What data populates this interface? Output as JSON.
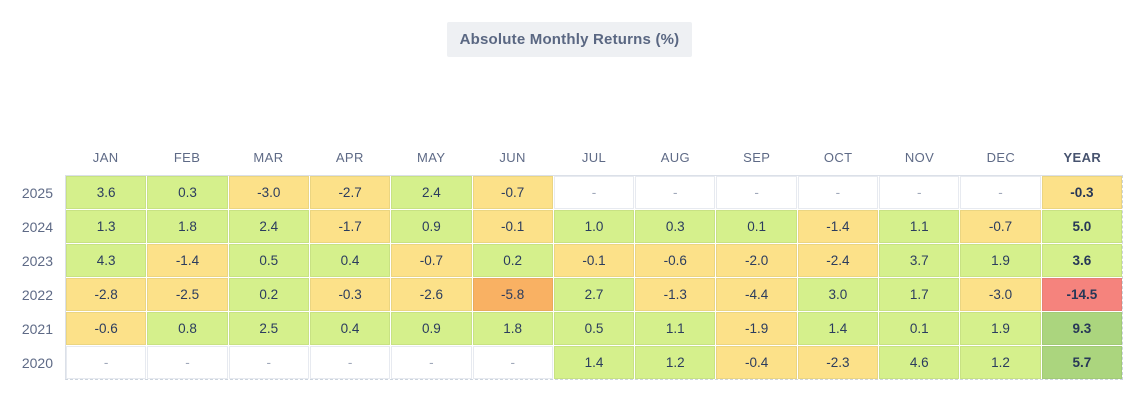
{
  "title": "Absolute Monthly Returns (%)",
  "chart_data": {
    "type": "heatmap",
    "title": "Absolute Monthly Returns (%)",
    "columns": [
      "JAN",
      "FEB",
      "MAR",
      "APR",
      "MAY",
      "JUN",
      "JUL",
      "AUG",
      "SEP",
      "OCT",
      "NOV",
      "DEC",
      "YEAR"
    ],
    "rows": [
      {
        "year": "2025",
        "values": [
          3.6,
          0.3,
          -3.0,
          -2.7,
          2.4,
          -0.7,
          null,
          null,
          null,
          null,
          null,
          null
        ],
        "year_total": -0.3
      },
      {
        "year": "2024",
        "values": [
          1.3,
          1.8,
          2.4,
          -1.7,
          0.9,
          -0.1,
          1.0,
          0.3,
          0.1,
          -1.4,
          1.1,
          -0.7
        ],
        "year_total": 5.0
      },
      {
        "year": "2023",
        "values": [
          4.3,
          -1.4,
          0.5,
          0.4,
          -0.7,
          0.2,
          -0.1,
          -0.6,
          -2.0,
          -2.4,
          3.7,
          1.9
        ],
        "year_total": 3.6
      },
      {
        "year": "2022",
        "values": [
          -2.8,
          -2.5,
          0.2,
          -0.3,
          -2.6,
          -5.8,
          2.7,
          -1.3,
          -4.4,
          3.0,
          1.7,
          -3.0
        ],
        "year_total": -14.5
      },
      {
        "year": "2021",
        "values": [
          -0.6,
          0.8,
          2.5,
          0.4,
          0.9,
          1.8,
          0.5,
          1.1,
          -1.9,
          1.4,
          0.1,
          1.9
        ],
        "year_total": 9.3
      },
      {
        "year": "2020",
        "values": [
          null,
          null,
          null,
          null,
          null,
          null,
          1.4,
          1.2,
          -0.4,
          -2.3,
          4.6,
          1.2
        ],
        "year_total": 5.7
      }
    ],
    "empty_cell_text": "-",
    "value_format_decimals": 1,
    "color_scale": {
      "levels": [
        {
          "class": "lv-r",
          "max": -10,
          "color": "#f5837d",
          "label": "strong-negative"
        },
        {
          "class": "lv-o",
          "max": -5,
          "color": "#f9b163",
          "label": "negative"
        },
        {
          "class": "lv-y",
          "max": 0,
          "color": "#fce189",
          "label": "slight-negative"
        },
        {
          "class": "lv-gl",
          "max": 5.5,
          "color": "#d5f08c",
          "label": "positive"
        },
        {
          "class": "lv-gd",
          "max": 999,
          "color": "#abd57e",
          "label": "strong-positive"
        }
      ],
      "empty_color": "#ffffff"
    },
    "layout_hints": {
      "header_bold_column": "YEAR",
      "year_column_bold_values": true,
      "grid_border_style": "solid top/left, dashed right/bottom"
    }
  }
}
